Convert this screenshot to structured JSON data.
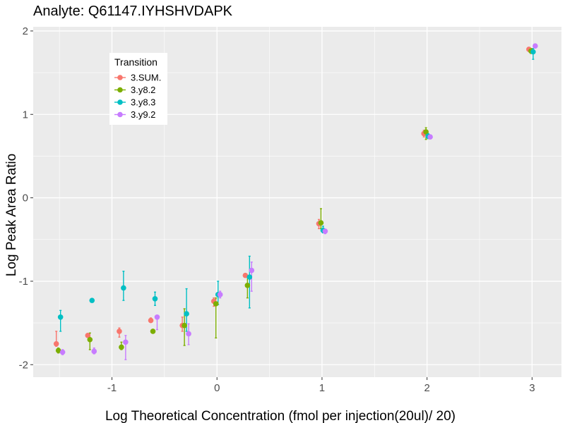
{
  "chart_data": {
    "type": "scatter",
    "title": "Analyte: Q61147.IYHSHVDAPK",
    "xlabel": "Log Theoretical Concentration (fmol per injection(20ul)/ 20)",
    "ylabel": "Log Peak Area Ratio",
    "xlim": [
      -1.75,
      3.28
    ],
    "ylim": [
      -2.15,
      2.05
    ],
    "x_major_ticks": [
      -1,
      0,
      1,
      2,
      3
    ],
    "x_minor_ticks": [
      -1.5,
      -0.5,
      0.5,
      1.5,
      2.5
    ],
    "y_major_ticks": [
      -2,
      -1,
      0,
      1,
      2
    ],
    "y_minor_ticks": [
      -1.5,
      -0.5,
      0.5,
      1.5
    ],
    "x_tick_labels": [
      "-1",
      "0",
      "1",
      "2",
      "3"
    ],
    "y_tick_labels": [
      "-2",
      "-1",
      "0",
      "1",
      "2"
    ],
    "dodge": [
      -0.03,
      -0.01,
      0.01,
      0.03
    ],
    "legend": {
      "title": "Transition",
      "position": "top-left",
      "entries": [
        "3.SUM.",
        "3.y8.2",
        "3.y8.3",
        "3.y9.2"
      ]
    },
    "x": [
      -1.5,
      -1.2,
      -0.9,
      -0.6,
      -0.3,
      0.0,
      0.3,
      1.0,
      2.0,
      3.0
    ],
    "series": [
      {
        "name": "3.SUM.",
        "color": "#F8766D",
        "values": [
          -1.75,
          -1.65,
          -1.6,
          -1.47,
          -1.53,
          -1.24,
          -0.93,
          -0.31,
          0.77,
          1.78
        ],
        "err_low": [
          -1.78,
          -1.67,
          -1.67,
          -1.49,
          -1.6,
          -1.3,
          -0.95,
          -0.37,
          0.73,
          1.76
        ],
        "err_high": [
          -1.6,
          -1.64,
          -1.56,
          -1.44,
          -1.43,
          -1.2,
          -0.91,
          -0.26,
          0.81,
          1.8
        ]
      },
      {
        "name": "3.y8.2",
        "color": "#7CAE00",
        "values": [
          -1.83,
          -1.7,
          -1.79,
          -1.6,
          -1.53,
          -1.27,
          -1.05,
          -0.3,
          0.79,
          1.76
        ],
        "err_low": [
          -1.86,
          -1.82,
          -1.82,
          -1.62,
          -1.77,
          -1.68,
          -1.2,
          -0.37,
          0.7,
          1.73
        ],
        "err_high": [
          -1.8,
          -1.62,
          -1.73,
          -1.58,
          -1.33,
          -1.2,
          -0.95,
          -0.13,
          0.84,
          1.79
        ]
      },
      {
        "name": "3.y8.3",
        "color": "#00BFC4",
        "values": [
          -1.43,
          -1.23,
          -1.08,
          -1.21,
          -1.39,
          -1.16,
          -0.95,
          -0.39,
          0.74,
          1.75
        ],
        "err_low": [
          -1.6,
          -1.24,
          -1.23,
          -1.29,
          -1.6,
          -1.28,
          -1.32,
          -0.42,
          0.71,
          1.66
        ],
        "err_high": [
          -1.35,
          -1.22,
          -0.88,
          -1.13,
          -1.09,
          -1.0,
          -0.7,
          -0.34,
          0.77,
          1.79
        ]
      },
      {
        "name": "3.y9.2",
        "color": "#C77CFF",
        "values": [
          -1.85,
          -1.84,
          -1.73,
          -1.43,
          -1.63,
          -1.16,
          -0.87,
          -0.4,
          0.73,
          1.82
        ],
        "err_low": [
          -1.88,
          -1.87,
          -1.94,
          -1.58,
          -1.76,
          -1.2,
          -1.12,
          -0.43,
          0.71,
          1.8
        ],
        "err_high": [
          -1.82,
          -1.8,
          -1.65,
          -1.43,
          -1.51,
          -1.12,
          -0.77,
          -0.38,
          0.75,
          1.84
        ]
      }
    ]
  }
}
